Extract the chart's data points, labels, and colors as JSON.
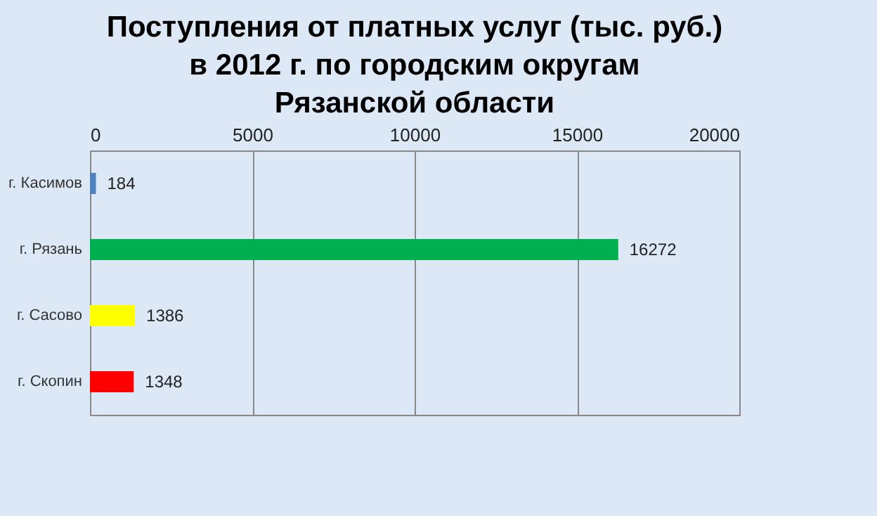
{
  "chart_data": {
    "type": "bar",
    "orientation": "horizontal",
    "title": "Поступления от  платных услуг (тыс. руб.) в 2012 г.  по  городским округам Рязанской области",
    "categories": [
      "г. Касимов",
      "г. Рязань",
      "г. Сасово",
      "г. Скопин"
    ],
    "values": [
      184,
      16272,
      1386,
      1348
    ],
    "colors": [
      "#4f81bd",
      "#00b050",
      "#ffff00",
      "#ff0000"
    ],
    "xlim": [
      0,
      20000
    ],
    "xticks": [
      0,
      5000,
      10000,
      15000,
      20000
    ],
    "grid": "x",
    "data_labels": true
  }
}
